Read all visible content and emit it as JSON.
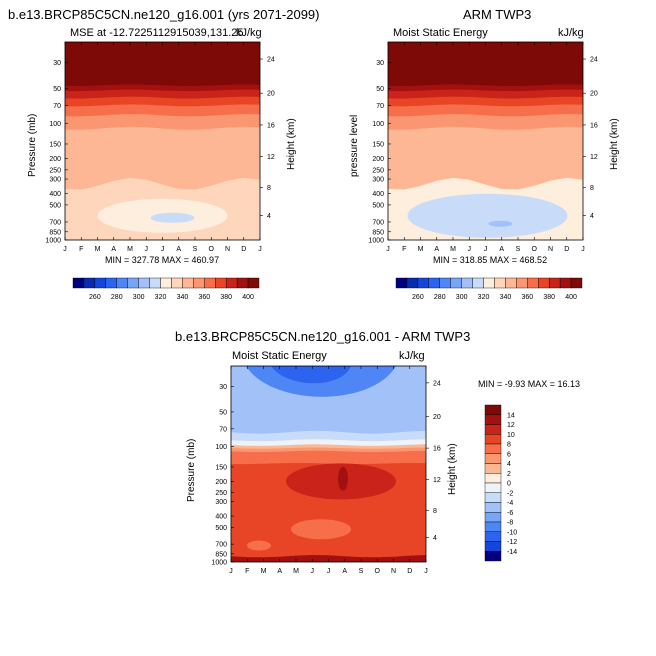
{
  "chart_data": [
    {
      "type": "heatmap",
      "title": "b.e13.BRCP85C5CN.ne120_g16.001 (yrs 2071-2099)",
      "subtitle_left": "MSE at -12.7225112915039,131.25",
      "units": "kJ/kg",
      "ylabel": "Pressure (mb)",
      "ylabel_right": "Height (km)",
      "x_ticks": [
        "J",
        "F",
        "M",
        "A",
        "M",
        "J",
        "J",
        "A",
        "S",
        "O",
        "N",
        "D",
        "J"
      ],
      "y_ticks": [
        "30",
        "50",
        "70",
        "100",
        "150",
        "200",
        "250",
        "300",
        "400",
        "500",
        "700",
        "850",
        "1000"
      ],
      "y_ticks_right": [
        "24",
        "20",
        "16",
        "12",
        "8",
        "4"
      ],
      "stats": "MIN = 327.78 MAX = 460.97",
      "colorbar_labels": [
        "260",
        "280",
        "300",
        "320",
        "340",
        "360",
        "380",
        "400"
      ],
      "ylim": [
        1000,
        20
      ]
    },
    {
      "type": "heatmap",
      "title": "ARM TWP3",
      "subtitle_left": "Moist Static Energy",
      "units": "kJ/kg",
      "ylabel": "pressure level",
      "ylabel_right": "Height (km)",
      "x_ticks": [
        "J",
        "F",
        "M",
        "A",
        "M",
        "J",
        "J",
        "A",
        "S",
        "O",
        "N",
        "D",
        "J"
      ],
      "y_ticks": [
        "30",
        "50",
        "70",
        "100",
        "150",
        "200",
        "250",
        "300",
        "400",
        "500",
        "700",
        "850",
        "1000"
      ],
      "y_ticks_right": [
        "24",
        "20",
        "16",
        "12",
        "8",
        "4"
      ],
      "stats": "MIN = 318.85 MAX = 468.52",
      "colorbar_labels": [
        "260",
        "280",
        "300",
        "320",
        "340",
        "360",
        "380",
        "400"
      ],
      "ylim": [
        1000,
        20
      ]
    },
    {
      "type": "heatmap",
      "title": "b.e13.BRCP85C5CN.ne120_g16.001 - ARM TWP3",
      "subtitle_left": "Moist Static Energy",
      "units": "kJ/kg",
      "ylabel": "Pressure (mb)",
      "ylabel_right": "Height (km)",
      "x_ticks": [
        "J",
        "F",
        "M",
        "A",
        "M",
        "J",
        "J",
        "A",
        "S",
        "O",
        "N",
        "D",
        "J"
      ],
      "y_ticks": [
        "30",
        "50",
        "70",
        "100",
        "150",
        "200",
        "250",
        "300",
        "400",
        "500",
        "700",
        "850",
        "1000"
      ],
      "y_ticks_right": [
        "24",
        "20",
        "16",
        "12",
        "8",
        "4"
      ],
      "stats": "MIN = -9.93 MAX = 16.13",
      "colorbar_labels": [
        "14",
        "12",
        "10",
        "8",
        "6",
        "4",
        "2",
        "0",
        "-2",
        "-4",
        "-6",
        "-8",
        "-10",
        "-12",
        "-14"
      ],
      "ylim": [
        1000,
        20
      ]
    }
  ],
  "palette": {
    "abs": [
      "#00007f",
      "#0a2bb0",
      "#1446dc",
      "#2c64f0",
      "#4f86f5",
      "#77a6f7",
      "#a2c1f8",
      "#c8dcfa",
      "#fdeede",
      "#fed6bc",
      "#fdb794",
      "#fb9770",
      "#f76e4a",
      "#e84526",
      "#c9231a",
      "#a2110f",
      "#7d0a06"
    ],
    "diff": [
      "#7d0a06",
      "#a2110f",
      "#c9231a",
      "#e84526",
      "#f76e4a",
      "#fb9770",
      "#fdb794",
      "#fdeede",
      "#eef3fb",
      "#c8dcfa",
      "#a2c1f8",
      "#77a6f7",
      "#4f86f5",
      "#2c64f0",
      "#1446dc",
      "#00007f"
    ]
  }
}
